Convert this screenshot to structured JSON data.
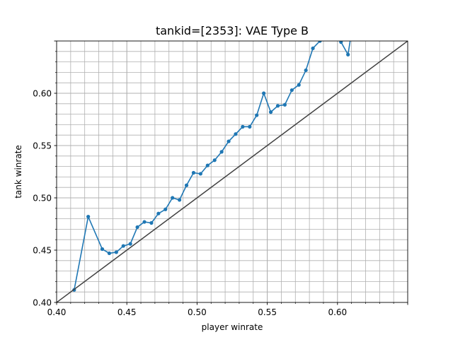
{
  "chart_data": {
    "type": "line",
    "title": "tankid=[2353]: VAE Type B",
    "xlabel": "player winrate",
    "ylabel": "tank winrate",
    "xlim": [
      0.4,
      0.65
    ],
    "ylim": [
      0.4,
      0.65
    ],
    "xticks": [
      "0.40",
      "0.45",
      "0.50",
      "0.55",
      "0.60"
    ],
    "yticks": [
      "0.40",
      "0.45",
      "0.50",
      "0.55",
      "0.60"
    ],
    "grid": true,
    "grid_minor": true,
    "legend": "none",
    "series": [
      {
        "color": "#1f77b4",
        "marker": "circle",
        "x": [
          0.4125,
          0.4225,
          0.4325,
          0.4375,
          0.4425,
          0.4475,
          0.4525,
          0.4575,
          0.4625,
          0.4675,
          0.4725,
          0.4775,
          0.4825,
          0.4875,
          0.4925,
          0.4975,
          0.5025,
          0.5075,
          0.5125,
          0.5175,
          0.5225,
          0.5275,
          0.5325,
          0.5375,
          0.5425,
          0.5475,
          0.5525,
          0.5575,
          0.5625,
          0.5675,
          0.5725,
          0.5775,
          0.5825,
          0.5875,
          0.5925,
          0.5975,
          0.6025,
          0.6075,
          0.6125
        ],
        "y": [
          0.412,
          0.482,
          0.451,
          0.447,
          0.448,
          0.454,
          0.456,
          0.472,
          0.477,
          0.476,
          0.485,
          0.489,
          0.5,
          0.498,
          0.512,
          0.524,
          0.523,
          0.531,
          0.536,
          0.544,
          0.554,
          0.561,
          0.568,
          0.568,
          0.579,
          0.6,
          0.582,
          0.588,
          0.589,
          0.603,
          0.608,
          0.622,
          0.643,
          0.65,
          0.655,
          0.658,
          0.649,
          0.637,
          0.68
        ]
      },
      {
        "color": "#404040",
        "marker": "none",
        "x": [
          0.4,
          0.65
        ],
        "y": [
          0.4,
          0.65
        ]
      }
    ]
  }
}
